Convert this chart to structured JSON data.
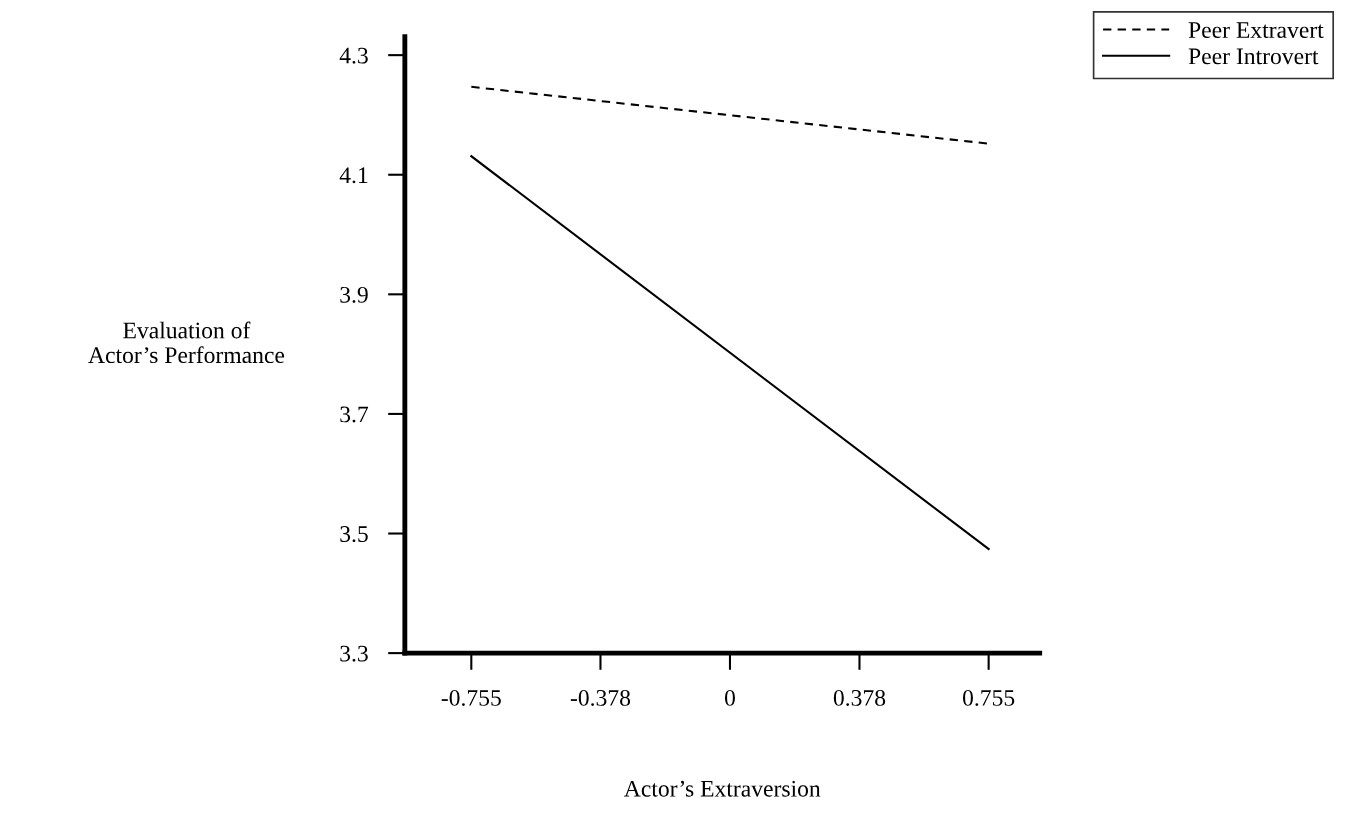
{
  "chart_data": {
    "type": "line",
    "xlabel": "Actor’s Extraversion",
    "ylabel": "Evaluation of\nActor’s Performance",
    "x": [
      -0.755,
      0.755
    ],
    "series": [
      {
        "name": "Peer Extravert",
        "color": "#000000",
        "values": [
          4.247,
          4.152
        ],
        "line_style": "dashed"
      },
      {
        "name": "Peer Introvert",
        "color": "#000000",
        "values": [
          4.131,
          3.474
        ],
        "line_style": "solid"
      }
    ],
    "xlim": [
      -0.949,
      0.904
    ],
    "xticks": [
      -0.755,
      -0.378,
      0,
      0.378,
      0.755
    ],
    "ylim": [
      3.3,
      4.331
    ],
    "yticks": [
      3.3,
      3.5,
      3.7,
      3.9,
      4.1,
      4.3
    ],
    "grid": false,
    "legend": "top right",
    "marker": "none"
  }
}
